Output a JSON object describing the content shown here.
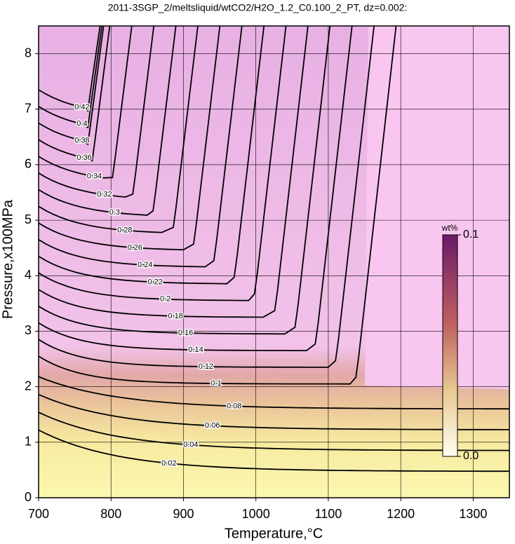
{
  "chart_data": {
    "type": "contour",
    "title": "2011-3SGP_2/meltsliquid/wtCO2/H2O_1.2_C0.100_2_PT, dz=0.002:",
    "x_label": "Temperature,°C",
    "y_label": "Pressure,x100MPa",
    "xlim": [
      700,
      1350
    ],
    "ylim": [
      0,
      8.5
    ],
    "xticks": [
      700,
      800,
      900,
      1000,
      1100,
      1200,
      1300
    ],
    "yticks": [
      0,
      1,
      2,
      3,
      4,
      5,
      6,
      7,
      8
    ],
    "grid": true,
    "levels": [
      0.02,
      0.04,
      0.06,
      0.08,
      0.1,
      0.12,
      0.14,
      0.16,
      0.18,
      0.2,
      0.22,
      0.24,
      0.26,
      0.28,
      0.3,
      0.32,
      0.34,
      0.36,
      0.38,
      0.4,
      0.42
    ],
    "colorbar": {
      "label": "wt%",
      "lim": [
        0,
        0.1
      ],
      "ticks": [
        {
          "value": 0,
          "label": "0.0"
        },
        0.1
      ]
    }
  }
}
